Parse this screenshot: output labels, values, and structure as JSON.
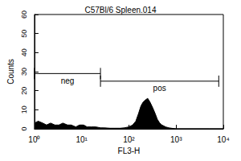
{
  "chart_data": {
    "type": "area",
    "title": "C57Bl/6 Spleen.014",
    "x_label": "FL3-H",
    "y_label": "Counts",
    "x": [
      1,
      1.2,
      1.5,
      1.8,
      2.2,
      2.7,
      3.3,
      4,
      5,
      6,
      7.5,
      9,
      11,
      13,
      16,
      20,
      25,
      30,
      40,
      50,
      65,
      80,
      100,
      120,
      140,
      160,
      180,
      200,
      220,
      250,
      280,
      320,
      360,
      400,
      450,
      500,
      600,
      700,
      850,
      1000,
      2000,
      5000,
      10000
    ],
    "values": [
      3,
      4,
      3,
      2,
      3,
      2,
      2,
      3,
      2,
      2,
      1,
      2,
      2,
      1,
      1,
      1,
      0.5,
      0.5,
      0.3,
      0.3,
      0.3,
      0.5,
      1,
      2,
      4,
      8,
      12,
      14,
      15,
      16,
      14,
      11,
      8,
      5,
      3,
      2,
      1,
      0.5,
      0.2,
      0,
      0,
      0,
      0
    ],
    "color": "#000000",
    "log": "x",
    "xlim": [
      1,
      10000
    ],
    "xticks": [
      {
        "value": 1,
        "label": "10⁰"
      },
      {
        "value": 10,
        "label": "10¹"
      },
      {
        "value": 100,
        "label": "10²"
      },
      {
        "value": 1000,
        "label": "10³"
      },
      {
        "value": 10000,
        "label": "10⁴"
      }
    ],
    "ylim": [
      0,
      60
    ],
    "yticks": [
      0,
      10,
      20,
      30,
      40,
      50,
      60
    ],
    "grid": false,
    "annotations": [
      {
        "text": "neg",
        "x": [
          1,
          25
        ],
        "y": 29
      },
      {
        "text": "pos",
        "x": [
          25,
          8000
        ],
        "y": 25
      }
    ]
  }
}
